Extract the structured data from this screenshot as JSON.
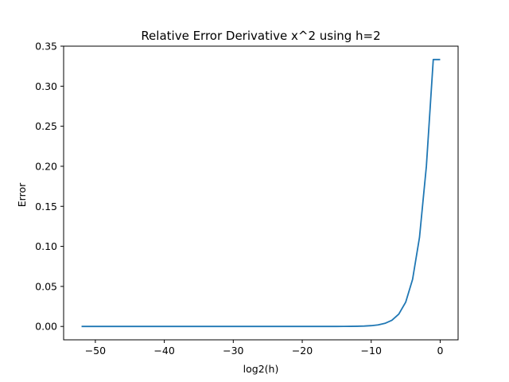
{
  "chart_data": {
    "type": "line",
    "title": "Relative Error Derivative x^2 using h=2",
    "xlabel": "log2(h)",
    "ylabel": "Error",
    "xlim": [
      -54.6,
      2.6
    ],
    "ylim": [
      -0.0167,
      0.35
    ],
    "xticks": [
      -50,
      -40,
      -30,
      -20,
      -10,
      0
    ],
    "yticks": [
      0.0,
      0.05,
      0.1,
      0.15,
      0.2,
      0.25,
      0.3,
      0.35
    ],
    "xtick_labels": [
      "−50",
      "−40",
      "−30",
      "−20",
      "−10",
      "0"
    ],
    "ytick_labels": [
      "0.00",
      "0.05",
      "0.10",
      "0.15",
      "0.20",
      "0.25",
      "0.30",
      "0.35"
    ],
    "grid": false,
    "legend": "none",
    "series": [
      {
        "color": "#1f77b4",
        "x": [
          -52,
          -51,
          -50,
          -49,
          -48,
          -47,
          -46,
          -45,
          -44,
          -43,
          -42,
          -41,
          -40,
          -39,
          -38,
          -37,
          -36,
          -35,
          -34,
          -33,
          -32,
          -31,
          -30,
          -29,
          -28,
          -27,
          -26,
          -25,
          -24,
          -23,
          -22,
          -21,
          -20,
          -19,
          -18,
          -17,
          -16,
          -15,
          -14,
          -13,
          -12,
          -11,
          -10,
          -9,
          -8,
          -7,
          -6,
          -5,
          -4,
          -3,
          -2,
          -1,
          0
        ],
        "y": [
          0.0,
          0.0,
          0.0,
          0.0,
          0.0,
          0.0,
          0.0,
          0.0,
          0.0,
          0.0,
          0.0,
          0.0,
          0.0,
          0.0,
          0.0,
          0.0,
          0.0,
          0.0,
          0.0,
          0.0,
          0.0,
          0.0,
          0.0,
          0.0,
          0.0,
          0.0,
          0.0,
          0.0,
          0.0,
          0.0,
          0.0,
          0.0,
          0.0,
          0.0,
          0.0,
          0.0,
          0.0,
          3e-05,
          6e-05,
          0.00012,
          0.00024,
          0.00049,
          0.00098,
          0.00195,
          0.0039,
          0.0077,
          0.0154,
          0.0303,
          0.0588,
          0.1111,
          0.2,
          0.3333,
          0.3333
        ]
      }
    ]
  }
}
